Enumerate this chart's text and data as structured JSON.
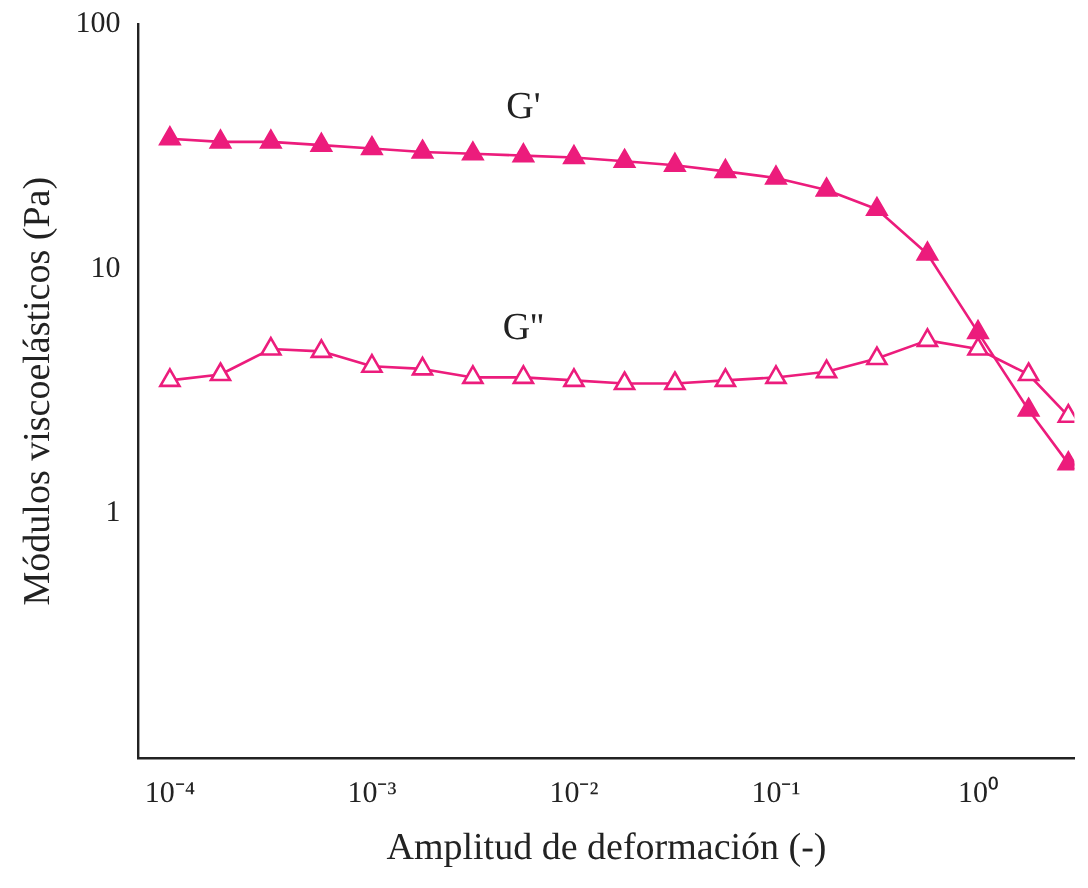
{
  "chart_data": {
    "type": "line",
    "xlabel": "Amplitud de deformación (-)",
    "ylabel": "Módulos viscoelásticos (Pa)",
    "log": "xy",
    "xlim": [
      7e-05,
      3
    ],
    "ylim": [
      0.1,
      100
    ],
    "xticks": [
      {
        "value": 0.0001,
        "label": "10⁻⁴"
      },
      {
        "value": 0.001,
        "label": "10⁻³"
      },
      {
        "value": 0.01,
        "label": "10⁻²"
      },
      {
        "value": 0.1,
        "label": "10⁻¹"
      },
      {
        "value": 1,
        "label": "10⁰"
      }
    ],
    "yticks": [
      1,
      10,
      100
    ],
    "x": [
      0.0001,
      0.000178,
      0.000316,
      0.000562,
      0.001,
      0.00178,
      0.00316,
      0.00562,
      0.01,
      0.0178,
      0.0316,
      0.0562,
      0.1,
      0.178,
      0.316,
      0.562,
      1,
      1.78,
      2.8
    ],
    "series": [
      {
        "name": "G'",
        "color": "#ec1c7c",
        "marker": "triangle",
        "values": [
          34,
          33,
          33,
          32,
          31,
          30,
          29.5,
          29,
          28.5,
          27.5,
          26.5,
          25,
          23.5,
          21,
          17.5,
          11.5,
          5.5,
          2.65,
          1.6
        ]
      },
      {
        "name": "G''",
        "color": "#ec1c7c",
        "marker": "triangle-open",
        "values": [
          3.5,
          3.7,
          4.7,
          4.6,
          4.0,
          3.9,
          3.6,
          3.6,
          3.5,
          3.4,
          3.4,
          3.5,
          3.6,
          3.8,
          4.3,
          5.1,
          4.7,
          3.7,
          2.5
        ]
      }
    ],
    "grid": false,
    "legend": false,
    "line_style": "solid"
  }
}
